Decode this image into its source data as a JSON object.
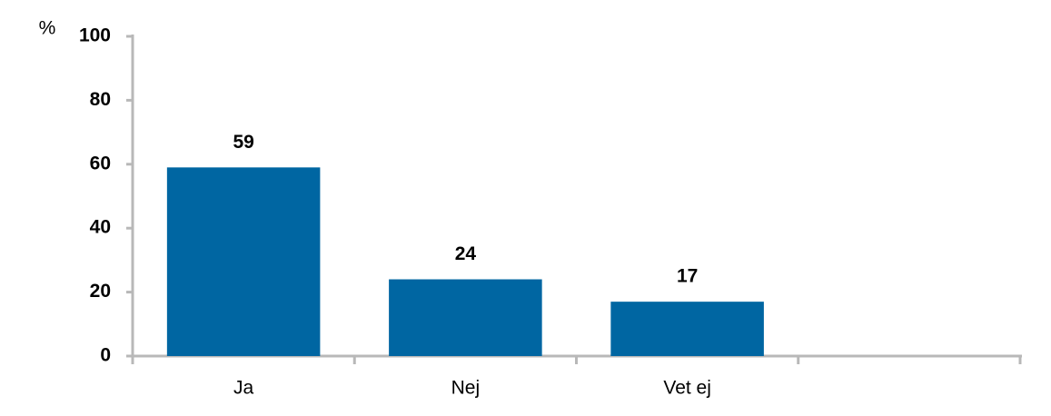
{
  "chart_data": {
    "type": "bar",
    "y_label": "%",
    "categories": [
      "Ja",
      "Nej",
      "Vet ej",
      null
    ],
    "values": [
      59,
      24,
      17,
      null
    ],
    "color": "#0066a2",
    "ylim": [
      0,
      100
    ],
    "yticks": [
      0,
      20,
      40,
      60,
      80,
      100
    ],
    "grid": false
  }
}
